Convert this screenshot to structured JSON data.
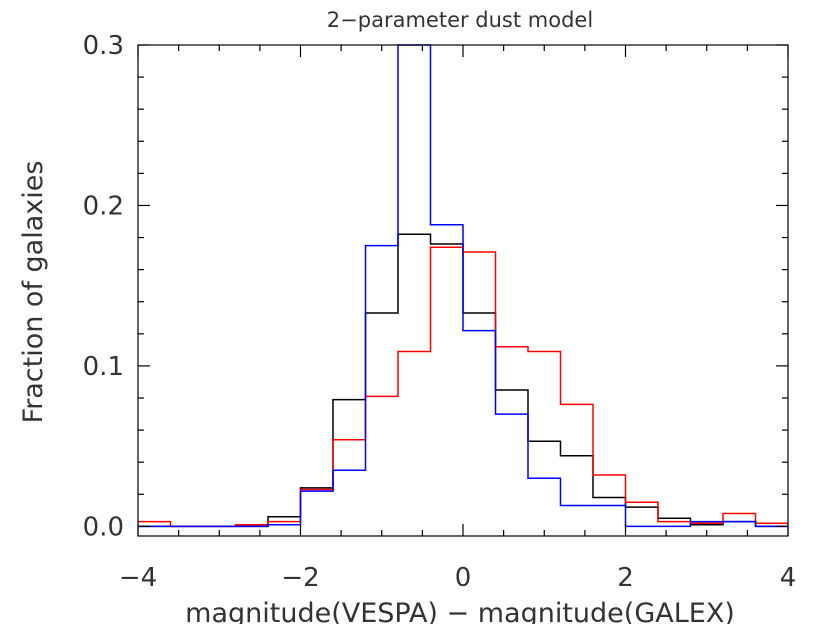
{
  "chart_data": {
    "type": "histogram-step",
    "title": "2−parameter dust model",
    "xlabel": "magnitude(VESPA) − magnitude(GALEX)",
    "ylabel": "Fraction of galaxies",
    "xlim": [
      -4,
      4
    ],
    "ylim": [
      -0.006,
      0.3
    ],
    "grid": false,
    "x_ticks": [
      {
        "value": -4,
        "label": "−4"
      },
      {
        "value": -2,
        "label": "−2"
      },
      {
        "value": 0,
        "label": "0"
      },
      {
        "value": 2,
        "label": "2"
      },
      {
        "value": 4,
        "label": "4"
      }
    ],
    "y_ticks": [
      {
        "value": 0.0,
        "label": "0.0"
      },
      {
        "value": 0.1,
        "label": "0.1"
      },
      {
        "value": 0.2,
        "label": "0.2"
      },
      {
        "value": 0.3,
        "label": "0.3"
      }
    ],
    "bin_edges": [
      -4.0,
      -3.6,
      -3.2,
      -2.8,
      -2.4,
      -2.0,
      -1.6,
      -1.2,
      -0.8,
      -0.4,
      0.0,
      0.4,
      0.8,
      1.2,
      1.6,
      2.0,
      2.4,
      2.8,
      3.2,
      3.6,
      4.0
    ],
    "series": [
      {
        "color": "#000000",
        "values": [
          0.0,
          0.0,
          0.0,
          0.0,
          0.006,
          0.024,
          0.079,
          0.133,
          0.182,
          0.176,
          0.133,
          0.085,
          0.053,
          0.044,
          0.018,
          0.012,
          0.005,
          0.001,
          0.003,
          0.0
        ]
      },
      {
        "color": "#ff0000",
        "values": [
          0.003,
          0.0,
          0.0,
          0.001,
          0.003,
          0.023,
          0.054,
          0.081,
          0.109,
          0.174,
          0.171,
          0.112,
          0.109,
          0.076,
          0.032,
          0.015,
          0.003,
          0.002,
          0.008,
          0.002
        ]
      },
      {
        "color": "#0000ff",
        "values": [
          0.0,
          0.0,
          0.0,
          0.0,
          0.001,
          0.022,
          0.035,
          0.175,
          0.3,
          0.188,
          0.122,
          0.07,
          0.03,
          0.013,
          0.013,
          0.0,
          0.0,
          0.003,
          0.003,
          0.0
        ]
      }
    ]
  }
}
